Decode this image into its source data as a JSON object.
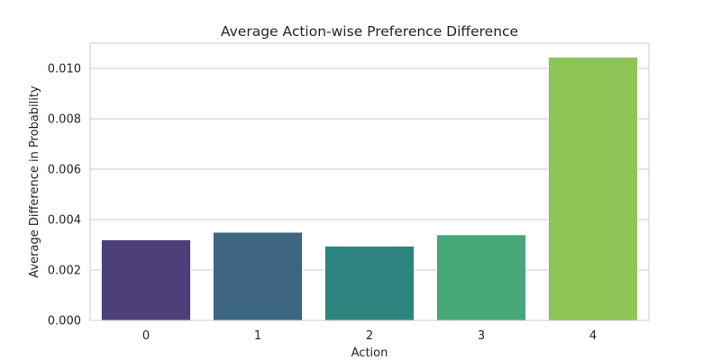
{
  "chart_data": {
    "type": "bar",
    "title": "Average Action-wise Preference Difference",
    "xlabel": "Action",
    "ylabel": "Average Difference in Probability",
    "categories": [
      "0",
      "1",
      "2",
      "3",
      "4"
    ],
    "values": [
      0.0032,
      0.0035,
      0.00295,
      0.0034,
      0.01045
    ],
    "colors": [
      "#4c3f7a",
      "#3d6683",
      "#2d837e",
      "#45a876",
      "#8dc556"
    ],
    "ylim": [
      0,
      0.011
    ],
    "yticks": [
      "0.000",
      "0.002",
      "0.004",
      "0.006",
      "0.008",
      "0.010"
    ],
    "grid": true,
    "legend": "none"
  }
}
